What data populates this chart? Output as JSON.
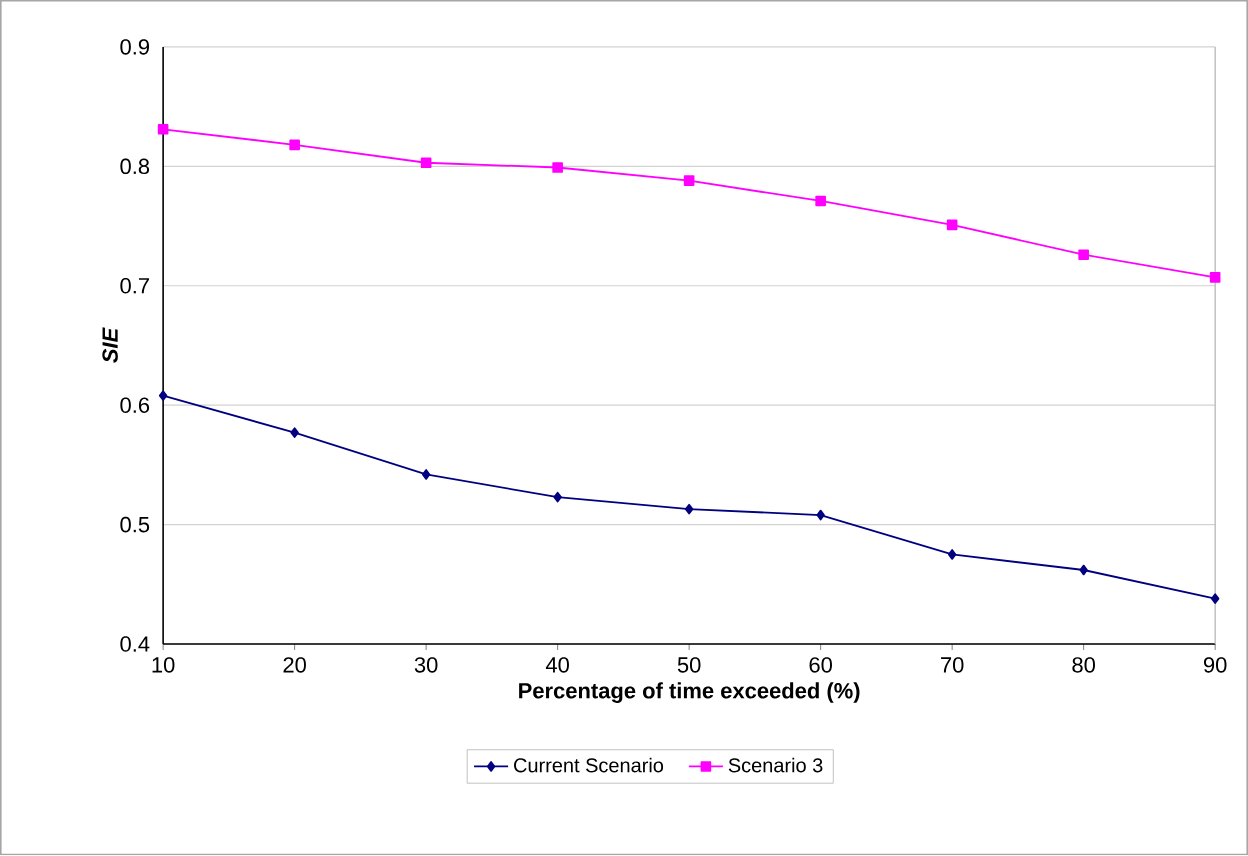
{
  "chart_data": {
    "type": "line",
    "xlabel": "Percentage of time exceeded (%)",
    "ylabel": "SIE",
    "x": [
      10,
      20,
      30,
      40,
      50,
      60,
      70,
      80,
      90
    ],
    "series": [
      {
        "name": "Current Scenario",
        "color": "#000080",
        "marker": "diamond",
        "values": [
          0.608,
          0.577,
          0.542,
          0.523,
          0.513,
          0.508,
          0.475,
          0.462,
          0.438
        ]
      },
      {
        "name": "Scenario 3",
        "color": "#ff00ff",
        "marker": "square",
        "values": [
          0.831,
          0.818,
          0.803,
          0.799,
          0.788,
          0.771,
          0.751,
          0.726,
          0.707
        ]
      }
    ],
    "xlim": [
      10,
      90
    ],
    "xticks": [
      10,
      20,
      30,
      40,
      50,
      60,
      70,
      80,
      90
    ],
    "ylim": [
      0.4,
      0.9
    ],
    "yticks": [
      0.4,
      0.5,
      0.6,
      0.7,
      0.8,
      0.9
    ],
    "grid": "y",
    "legend": "bottom",
    "line_style": "solid"
  }
}
